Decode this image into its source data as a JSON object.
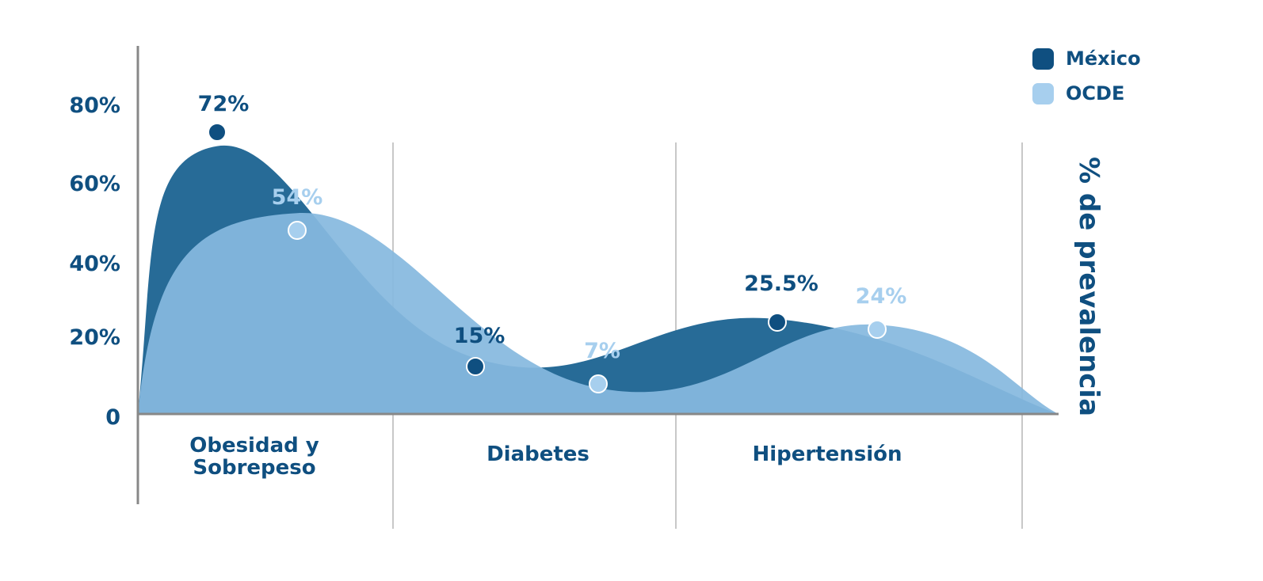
{
  "chart_data": {
    "type": "area",
    "categories": [
      "Obesidad y Sobrepeso",
      "Diabetes",
      "Hipertensión"
    ],
    "category_lines": [
      [
        "Obesidad y",
        "Sobrepeso"
      ],
      [
        "Diabetes"
      ],
      [
        "Hipertensión"
      ]
    ],
    "series": [
      {
        "name": "México",
        "values": [
          72,
          15,
          25.5
        ],
        "labels": [
          "72%",
          "15%",
          "25.5%"
        ],
        "color": "#276b97",
        "marker": "#0f4f80",
        "label_color": "#0f4f80"
      },
      {
        "name": "OCDE",
        "values": [
          54,
          7,
          24
        ],
        "labels": [
          "54%",
          "7%",
          "24%"
        ],
        "color": "#86b9df",
        "marker": "#a7cfee",
        "label_color": "#a7cfee"
      }
    ],
    "ylabel": "% de prevalencia",
    "yticks": [
      {
        "value": 0,
        "label": "0"
      },
      {
        "value": 20,
        "label": "20%"
      },
      {
        "value": 40,
        "label": "40%"
      },
      {
        "value": 60,
        "label": "60%"
      },
      {
        "value": 80,
        "label": "80%"
      }
    ],
    "ylim": [
      0,
      80
    ],
    "grid": "vertical separators between categories",
    "legend_position": "top-right",
    "text_color": "#0f4f80",
    "axis_color": "#888888",
    "separator_color": "#c8c8c8"
  }
}
